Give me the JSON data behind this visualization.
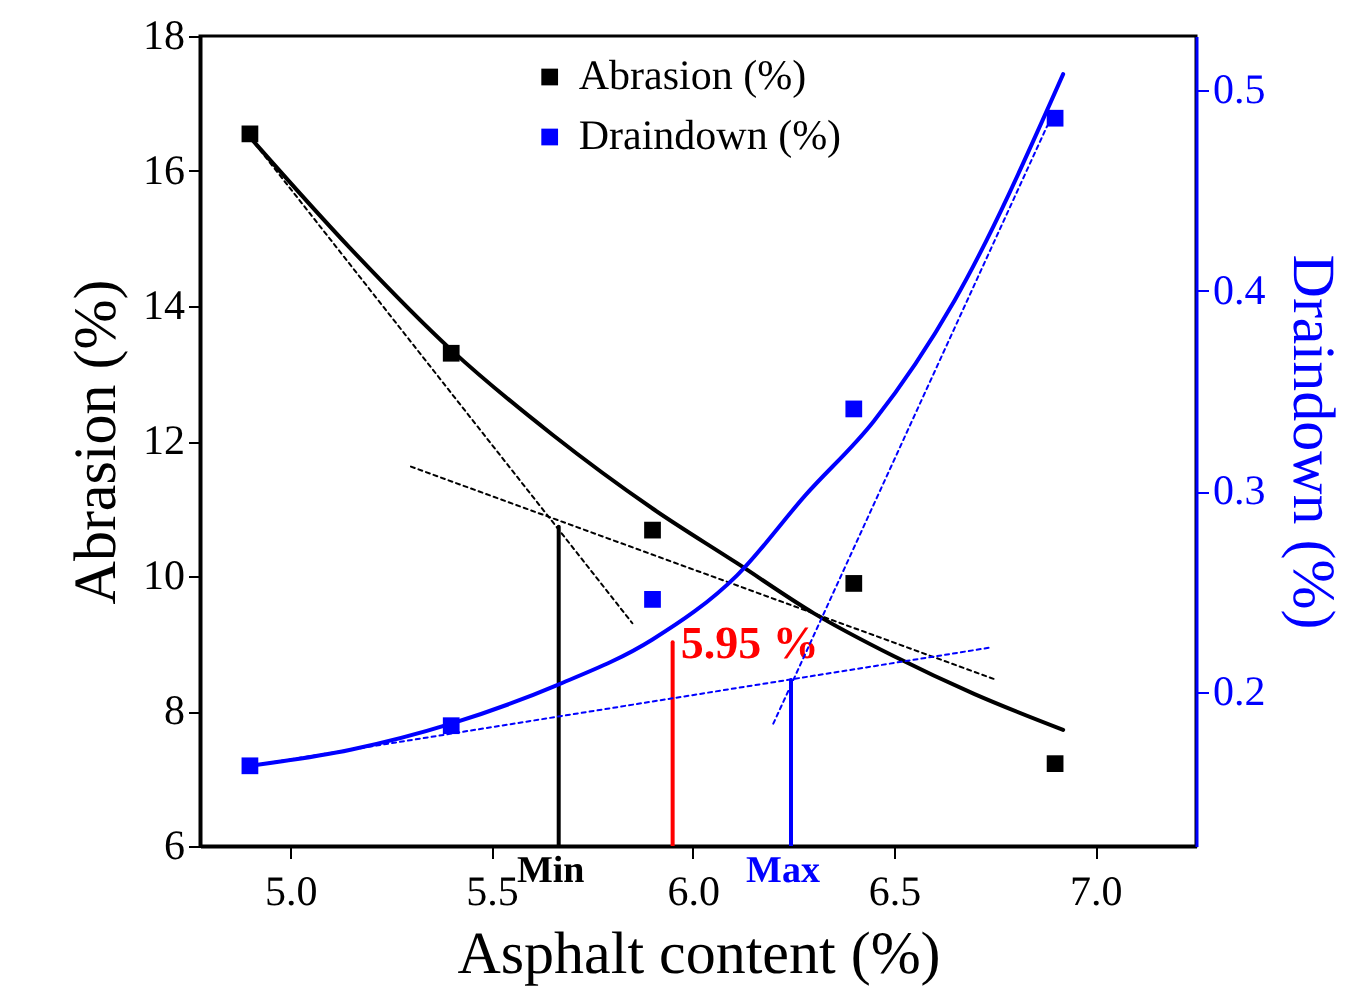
{
  "chart_data": {
    "type": "scatter",
    "xlabel": "Asphalt content (%)",
    "ylabel": "Abrasion (%)",
    "y2label": "Draindown (%)",
    "xlim": [
      4.776,
      7.25
    ],
    "xticks": [
      {
        "value": 5,
        "label": "5.0"
      },
      {
        "value": 5.5,
        "label": "5.5"
      },
      {
        "value": 6,
        "label": "6.0"
      },
      {
        "value": 6.5,
        "label": "6.5"
      },
      {
        "value": 7,
        "label": "7.0"
      }
    ],
    "ylim": [
      6,
      18
    ],
    "yticks": [
      6,
      8,
      10,
      12,
      14,
      16,
      18
    ],
    "y2lim": [
      0.123,
      0.527
    ],
    "y2ticks": [
      0.2,
      0.3,
      0.4,
      0.5
    ],
    "legend": "top",
    "series": [
      {
        "name": "Abrasion (%)",
        "color": "#000000",
        "marker": "square",
        "x": [
          4.9,
          5.4,
          5.9,
          6.4,
          6.9
        ],
        "values": [
          16.55,
          13.3,
          10.68,
          9.89,
          7.22
        ]
      },
      {
        "name": "Draindown (%)",
        "color": "#0000ff",
        "marker": "square",
        "axis": "y2",
        "x": [
          4.9,
          5.4,
          5.9,
          6.4,
          6.9
        ],
        "values": [
          0.163,
          0.183,
          0.246,
          0.341,
          0.486
        ]
      },
      {
        "color": "#000000",
        "type": "line",
        "x": [
          4.9,
          5.15,
          5.4,
          5.65,
          5.9,
          6.11,
          6.3,
          6.5,
          6.7,
          6.92
        ],
        "values": [
          16.5,
          14.85,
          13.35,
          12.1,
          11.0,
          10.19,
          9.45,
          8.81,
          8.25,
          7.72
        ]
      },
      {
        "color": "#0000ff",
        "type": "line",
        "axis": "y2",
        "x": [
          4.9,
          5.15,
          5.4,
          5.66,
          5.9,
          6.11,
          6.28,
          6.45,
          6.65,
          6.92
        ],
        "values": [
          0.163,
          0.171,
          0.184,
          0.203,
          0.226,
          0.258,
          0.298,
          0.335,
          0.395,
          0.508
        ]
      },
      {
        "color": "#000000",
        "type": "line",
        "line_style": "dotted",
        "x": [
          4.9,
          5.85
        ],
        "values": [
          16.5,
          9.3
        ]
      },
      {
        "color": "#000000",
        "type": "line",
        "line_style": "dotted",
        "x": [
          5.3,
          6.75
        ],
        "values": [
          11.62,
          8.47
        ]
      },
      {
        "color": "#0000ff",
        "type": "line",
        "line_style": "dotted",
        "axis": "y2",
        "x": [
          4.9,
          6.74
        ],
        "values": [
          0.163,
          0.222
        ]
      },
      {
        "color": "#0000ff",
        "type": "line",
        "line_style": "dotted",
        "axis": "y2",
        "x": [
          6.2,
          6.88
        ],
        "values": [
          0.184,
          0.482
        ]
      },
      {
        "color": "#000000",
        "type": "line",
        "x": [
          5.667,
          5.667
        ],
        "values": [
          10.73,
          6
        ]
      },
      {
        "color": "#ff0000",
        "type": "line",
        "x": [
          5.95,
          5.95
        ],
        "values": [
          9.02,
          6
        ]
      },
      {
        "color": "#0000ff",
        "type": "line",
        "x": [
          6.244,
          6.244
        ],
        "values": [
          8.46,
          6
        ]
      }
    ],
    "annotations": [
      {
        "text": "Min",
        "x": 5.667,
        "y": 6
      },
      {
        "text": "5.95 %",
        "x": 5.95,
        "y": 9.0
      },
      {
        "text": "Max",
        "x": 6.244,
        "y": 6
      }
    ]
  }
}
